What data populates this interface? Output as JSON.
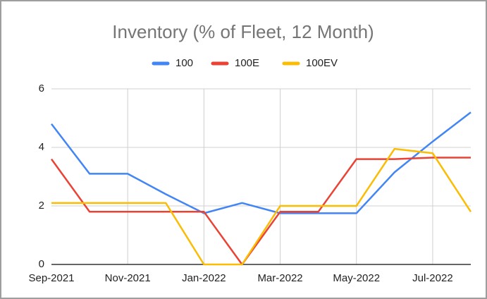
{
  "chart_data": {
    "type": "line",
    "title": "Inventory (% of Fleet, 12 Month)",
    "categories": [
      "Sep-2021",
      null,
      "Nov-2021",
      null,
      "Jan-2022",
      null,
      "Mar-2022",
      null,
      "May-2022",
      null,
      "Jul-2022",
      null
    ],
    "series": [
      {
        "name": "100",
        "color": "#4285f4",
        "values": [
          4.8,
          3.1,
          3.1,
          2.4,
          1.75,
          2.1,
          1.75,
          1.75,
          1.75,
          3.15,
          4.2,
          5.2
        ]
      },
      {
        "name": "100E",
        "color": "#ea4335",
        "values": [
          3.6,
          1.8,
          1.8,
          1.8,
          1.8,
          0,
          1.8,
          1.8,
          3.6,
          3.6,
          3.65,
          3.65
        ]
      },
      {
        "name": "100EV",
        "color": "#fbbc04",
        "values": [
          2.1,
          2.1,
          2.1,
          2.1,
          0,
          0,
          2.0,
          2.0,
          2.0,
          3.95,
          3.8,
          1.8
        ]
      }
    ],
    "ylim": [
      0,
      6
    ],
    "yticks": [
      0,
      2,
      4,
      6
    ],
    "grid": true,
    "legend": "top"
  }
}
